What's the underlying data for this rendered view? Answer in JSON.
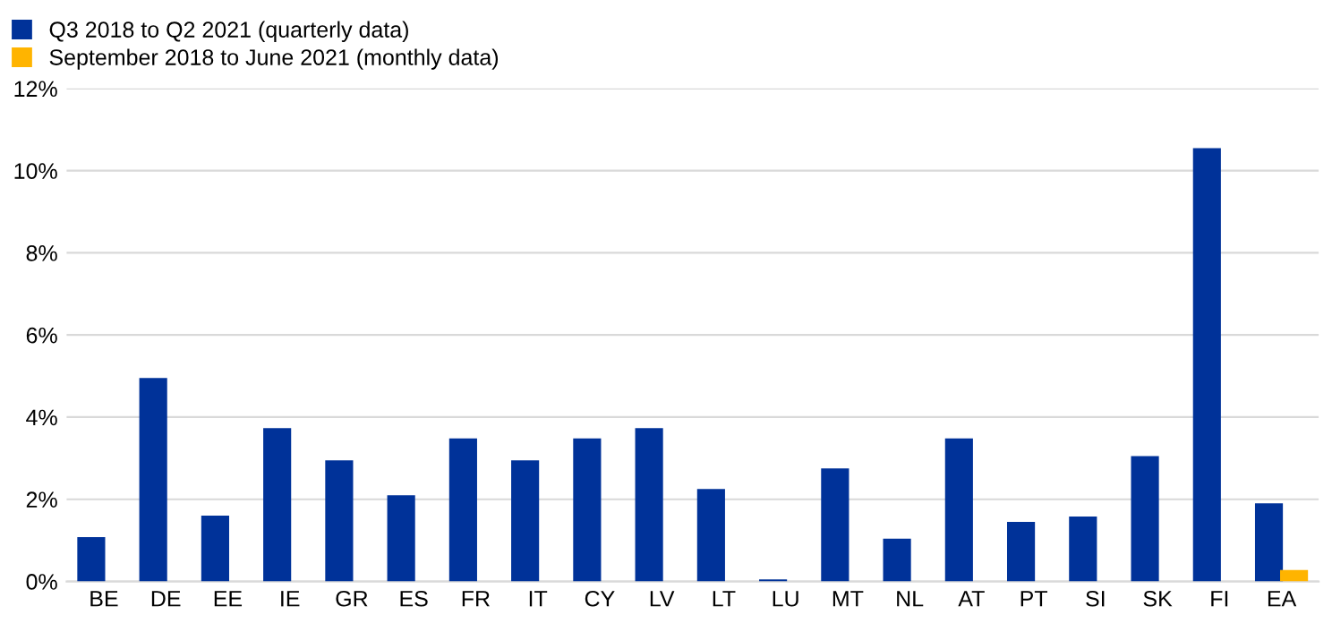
{
  "chart_data": {
    "type": "bar",
    "categories": [
      "BE",
      "DE",
      "EE",
      "IE",
      "GR",
      "ES",
      "FR",
      "IT",
      "CY",
      "LV",
      "LT",
      "LU",
      "MT",
      "NL",
      "AT",
      "PT",
      "SI",
      "SK",
      "FI",
      "EA"
    ],
    "series": [
      {
        "name": "Q3 2018 to Q2 2021 (quarterly data)",
        "color": "#003299",
        "values": [
          1.08,
          4.95,
          1.6,
          3.73,
          2.95,
          2.1,
          3.48,
          2.95,
          3.48,
          3.73,
          2.25,
          0.05,
          2.75,
          1.04,
          3.48,
          1.45,
          1.58,
          3.05,
          10.55,
          1.9
        ]
      },
      {
        "name": "September 2018 to June 2021 (monthly data)",
        "color": "#ffb400",
        "values": [
          null,
          null,
          null,
          null,
          null,
          null,
          null,
          null,
          null,
          null,
          null,
          null,
          null,
          null,
          null,
          null,
          null,
          null,
          null,
          0.28
        ]
      }
    ],
    "ylim": [
      0,
      12
    ],
    "yticks": [
      {
        "value": 0,
        "label": "0%"
      },
      {
        "value": 2,
        "label": "2%"
      },
      {
        "value": 4,
        "label": "4%"
      },
      {
        "value": 6,
        "label": "6%"
      },
      {
        "value": 8,
        "label": "8%"
      },
      {
        "value": 10,
        "label": "10%"
      },
      {
        "value": 12,
        "label": "12%"
      }
    ],
    "grid": "y",
    "legend": "top left"
  }
}
